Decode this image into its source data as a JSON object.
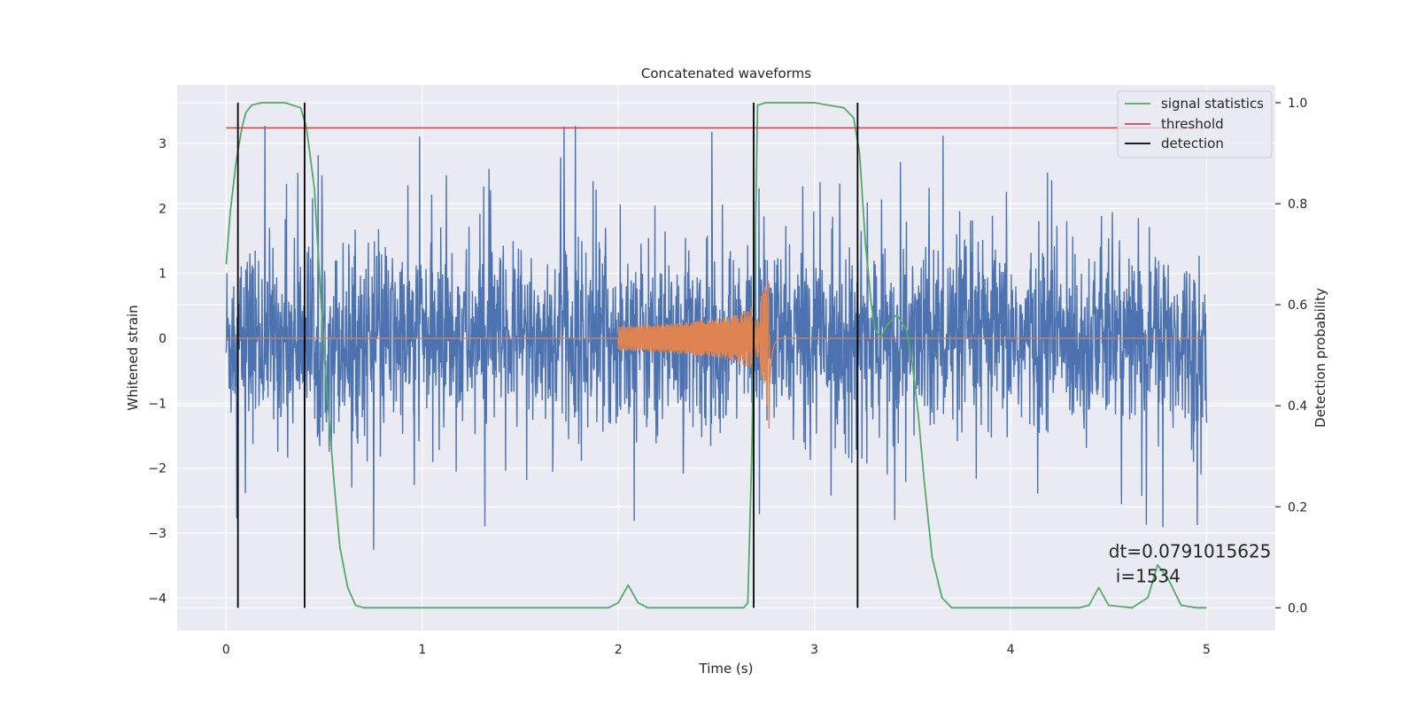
{
  "chart_data": {
    "type": "line",
    "title": "Concatenated waveforms",
    "xlabel": "Time (s)",
    "ylabel": "Whitened strain",
    "y2label": "Detection probability",
    "xlim": [
      -0.25,
      5.35
    ],
    "ylim": [
      -4.5,
      3.9
    ],
    "y2lim": [
      -0.045,
      1.035
    ],
    "xticks": [
      0,
      1,
      2,
      3,
      4,
      5
    ],
    "xtick_labels": [
      "0",
      "1",
      "2",
      "3",
      "4",
      "5"
    ],
    "yticks": [
      -4,
      -3,
      -2,
      -1,
      0,
      1,
      2,
      3
    ],
    "ytick_labels": [
      "−4",
      "−3",
      "−2",
      "−1",
      "0",
      "1",
      "2",
      "3"
    ],
    "y2ticks": [
      0.0,
      0.2,
      0.4,
      0.6,
      0.8,
      1.0
    ],
    "y2tick_labels": [
      "0.0",
      "0.2",
      "0.4",
      "0.6",
      "0.8",
      "1.0"
    ],
    "grid": true,
    "legend_position": "top-right",
    "series": [
      {
        "name": "",
        "axis": "left",
        "kind": "noise",
        "color": "#4c72b0",
        "x_range": [
          0,
          5
        ],
        "typical_amplitude": [
          -1.1,
          1.1
        ],
        "extremes": [
          -4.1,
          3.5
        ]
      },
      {
        "name": "",
        "axis": "left",
        "kind": "chirp",
        "color": "#dd8452",
        "x_range": [
          0,
          5
        ],
        "chirp_start": 2.0,
        "chirp_peak": 2.77,
        "peak_amplitude": [
          -1.05,
          1.55
        ]
      },
      {
        "name": "signal statistics",
        "axis": "right",
        "color": "#55a868",
        "x": [
          0.0,
          0.02,
          0.05,
          0.08,
          0.1,
          0.13,
          0.18,
          0.3,
          0.38,
          0.41,
          0.45,
          0.5,
          0.55,
          0.58,
          0.62,
          0.66,
          0.7,
          1.0,
          1.5,
          1.95,
          2.0,
          2.05,
          2.1,
          2.15,
          2.2,
          2.5,
          2.64,
          2.66,
          2.68,
          2.71,
          2.75,
          3.0,
          3.15,
          3.2,
          3.23,
          3.26,
          3.29,
          3.31,
          3.34,
          3.37,
          3.42,
          3.47,
          3.5,
          3.53,
          3.56,
          3.6,
          3.65,
          3.7,
          4.0,
          4.35,
          4.4,
          4.45,
          4.5,
          4.62,
          4.7,
          4.75,
          4.8,
          4.87,
          4.95,
          5.0
        ],
        "y": [
          0.68,
          0.78,
          0.88,
          0.95,
          0.98,
          0.995,
          1.0,
          1.0,
          0.99,
          0.95,
          0.83,
          0.5,
          0.25,
          0.12,
          0.04,
          0.005,
          0.0,
          0.0,
          0.0,
          0.0,
          0.01,
          0.045,
          0.01,
          0.0,
          0.0,
          0.0,
          0.0,
          0.01,
          0.3,
          0.995,
          1.0,
          1.0,
          0.99,
          0.97,
          0.9,
          0.72,
          0.6,
          0.55,
          0.535,
          0.56,
          0.58,
          0.55,
          0.48,
          0.38,
          0.25,
          0.1,
          0.02,
          0.0,
          0.0,
          0.0,
          0.005,
          0.04,
          0.005,
          0.0,
          0.02,
          0.085,
          0.06,
          0.005,
          0.0,
          0.0
        ]
      },
      {
        "name": "threshold",
        "axis": "right",
        "color": "#c44e52",
        "x": [
          0,
          5
        ],
        "y": [
          0.95,
          0.95
        ]
      },
      {
        "name": "detection",
        "axis": "right",
        "color": "#000000",
        "vlines": [
          0.06,
          0.4,
          2.69,
          3.22
        ],
        "y": [
          0,
          1
        ]
      }
    ],
    "annotation": {
      "line1": "dt=0.0791015625",
      "line2": "i=1534",
      "x": 4.5,
      "y2": 0.1
    }
  }
}
